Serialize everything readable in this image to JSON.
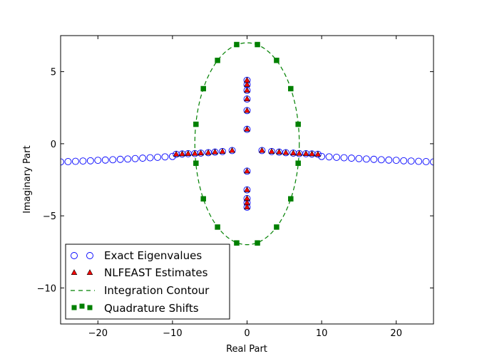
{
  "chart_data": {
    "type": "scatter",
    "xlabel": "Real Part",
    "ylabel": "Imaginary Part",
    "xlim": [
      -25,
      25
    ],
    "ylim": [
      -12.5,
      7.5
    ],
    "xticks": [
      -20,
      -10,
      0,
      10,
      20
    ],
    "xtick_labels": [
      "−20",
      "−10",
      "0",
      "10",
      "20"
    ],
    "yticks": [
      5,
      0,
      -5,
      -10
    ],
    "ytick_labels": [
      "5",
      "0",
      "−5",
      "−10"
    ],
    "grid": false,
    "legend_position": "lower-left",
    "colors": {
      "exact": "#0000ff",
      "nlfeast_fill": "#ff0000",
      "contour": "#008000",
      "quadrature": "#008000"
    },
    "series": [
      {
        "name": "Exact Eigenvalues",
        "marker": "open-circle",
        "points": [
          {
            "x": -25.0,
            "y": -1.26
          },
          {
            "x": -24.0,
            "y": -1.24
          },
          {
            "x": -23.0,
            "y": -1.22
          },
          {
            "x": -22.0,
            "y": -1.2
          },
          {
            "x": -21.0,
            "y": -1.18
          },
          {
            "x": -20.0,
            "y": -1.15
          },
          {
            "x": -19.0,
            "y": -1.13
          },
          {
            "x": -18.0,
            "y": -1.11
          },
          {
            "x": -17.0,
            "y": -1.08
          },
          {
            "x": -16.0,
            "y": -1.06
          },
          {
            "x": -15.0,
            "y": -1.03
          },
          {
            "x": -14.0,
            "y": -1.0
          },
          {
            "x": -13.0,
            "y": -0.97
          },
          {
            "x": -12.0,
            "y": -0.94
          },
          {
            "x": -11.0,
            "y": -0.91
          },
          {
            "x": -10.0,
            "y": -0.88
          },
          {
            "x": -9.5,
            "y": -0.73
          },
          {
            "x": -8.7,
            "y": -0.71
          },
          {
            "x": -7.9,
            "y": -0.69
          },
          {
            "x": -7.0,
            "y": -0.68
          },
          {
            "x": -6.2,
            "y": -0.65
          },
          {
            "x": -5.2,
            "y": -0.62
          },
          {
            "x": -4.3,
            "y": -0.58
          },
          {
            "x": -3.3,
            "y": -0.54
          },
          {
            "x": -2.0,
            "y": -0.47
          },
          {
            "x": 2.0,
            "y": -0.47
          },
          {
            "x": 3.3,
            "y": -0.54
          },
          {
            "x": 4.3,
            "y": -0.58
          },
          {
            "x": 5.2,
            "y": -0.62
          },
          {
            "x": 6.2,
            "y": -0.65
          },
          {
            "x": 7.0,
            "y": -0.68
          },
          {
            "x": 7.9,
            "y": -0.69
          },
          {
            "x": 8.7,
            "y": -0.71
          },
          {
            "x": 9.5,
            "y": -0.73
          },
          {
            "x": 10.0,
            "y": -0.88
          },
          {
            "x": 11.0,
            "y": -0.91
          },
          {
            "x": 12.0,
            "y": -0.94
          },
          {
            "x": 13.0,
            "y": -0.97
          },
          {
            "x": 14.0,
            "y": -1.0
          },
          {
            "x": 15.0,
            "y": -1.03
          },
          {
            "x": 16.0,
            "y": -1.06
          },
          {
            "x": 17.0,
            "y": -1.08
          },
          {
            "x": 18.0,
            "y": -1.11
          },
          {
            "x": 19.0,
            "y": -1.13
          },
          {
            "x": 20.0,
            "y": -1.15
          },
          {
            "x": 21.0,
            "y": -1.18
          },
          {
            "x": 22.0,
            "y": -1.2
          },
          {
            "x": 23.0,
            "y": -1.22
          },
          {
            "x": 24.0,
            "y": -1.24
          },
          {
            "x": 25.0,
            "y": -1.26
          },
          {
            "x": 0.0,
            "y": 1.0
          },
          {
            "x": 0.0,
            "y": 2.3
          },
          {
            "x": 0.0,
            "y": 3.1
          },
          {
            "x": 0.0,
            "y": 3.7
          },
          {
            "x": 0.0,
            "y": 4.1
          },
          {
            "x": 0.0,
            "y": 4.4
          },
          {
            "x": 0.0,
            "y": -1.9
          },
          {
            "x": 0.0,
            "y": -3.2
          },
          {
            "x": 0.0,
            "y": -3.8
          },
          {
            "x": 0.0,
            "y": -4.1
          },
          {
            "x": 0.0,
            "y": -4.4
          }
        ]
      },
      {
        "name": "NLFEAST Estimates",
        "marker": "filled-triangle",
        "points": [
          {
            "x": -9.5,
            "y": -0.73
          },
          {
            "x": -8.7,
            "y": -0.71
          },
          {
            "x": -7.9,
            "y": -0.69
          },
          {
            "x": -7.0,
            "y": -0.68
          },
          {
            "x": -6.2,
            "y": -0.65
          },
          {
            "x": -5.2,
            "y": -0.62
          },
          {
            "x": -4.3,
            "y": -0.58
          },
          {
            "x": -3.3,
            "y": -0.54
          },
          {
            "x": -2.0,
            "y": -0.47
          },
          {
            "x": 2.0,
            "y": -0.47
          },
          {
            "x": 3.3,
            "y": -0.54
          },
          {
            "x": 4.3,
            "y": -0.58
          },
          {
            "x": 5.2,
            "y": -0.62
          },
          {
            "x": 6.2,
            "y": -0.65
          },
          {
            "x": 7.0,
            "y": -0.68
          },
          {
            "x": 7.9,
            "y": -0.69
          },
          {
            "x": 8.7,
            "y": -0.71
          },
          {
            "x": 9.5,
            "y": -0.73
          },
          {
            "x": 0.0,
            "y": 1.0
          },
          {
            "x": 0.0,
            "y": 2.3
          },
          {
            "x": 0.0,
            "y": 3.1
          },
          {
            "x": 0.0,
            "y": 3.7
          },
          {
            "x": 0.0,
            "y": 4.1
          },
          {
            "x": 0.0,
            "y": 4.4
          },
          {
            "x": 0.0,
            "y": -1.9
          },
          {
            "x": 0.0,
            "y": -3.2
          },
          {
            "x": 0.0,
            "y": -3.8
          },
          {
            "x": 0.0,
            "y": -4.1
          },
          {
            "x": 0.0,
            "y": -4.4
          }
        ]
      },
      {
        "name": "Integration Contour",
        "type": "dashed-line",
        "shape": "ellipse",
        "center": [
          0,
          0
        ],
        "semi_axis_x": 7,
        "semi_axis_y": 7
      },
      {
        "name": "Quadrature Shifts",
        "marker": "filled-square",
        "points": [
          {
            "x": 6.85,
            "y": 1.35
          },
          {
            "x": 5.86,
            "y": 3.82
          },
          {
            "x": 3.96,
            "y": 5.78
          },
          {
            "x": 1.39,
            "y": 6.88
          },
          {
            "x": -1.39,
            "y": 6.88
          },
          {
            "x": -3.96,
            "y": 5.78
          },
          {
            "x": -5.86,
            "y": 3.82
          },
          {
            "x": -6.85,
            "y": 1.35
          },
          {
            "x": -6.85,
            "y": -1.35
          },
          {
            "x": -5.86,
            "y": -3.82
          },
          {
            "x": -3.96,
            "y": -5.78
          },
          {
            "x": -1.39,
            "y": -6.88
          },
          {
            "x": 1.39,
            "y": -6.88
          },
          {
            "x": 3.96,
            "y": -5.78
          },
          {
            "x": 5.86,
            "y": -3.82
          },
          {
            "x": 6.85,
            "y": -1.35
          }
        ]
      }
    ]
  }
}
